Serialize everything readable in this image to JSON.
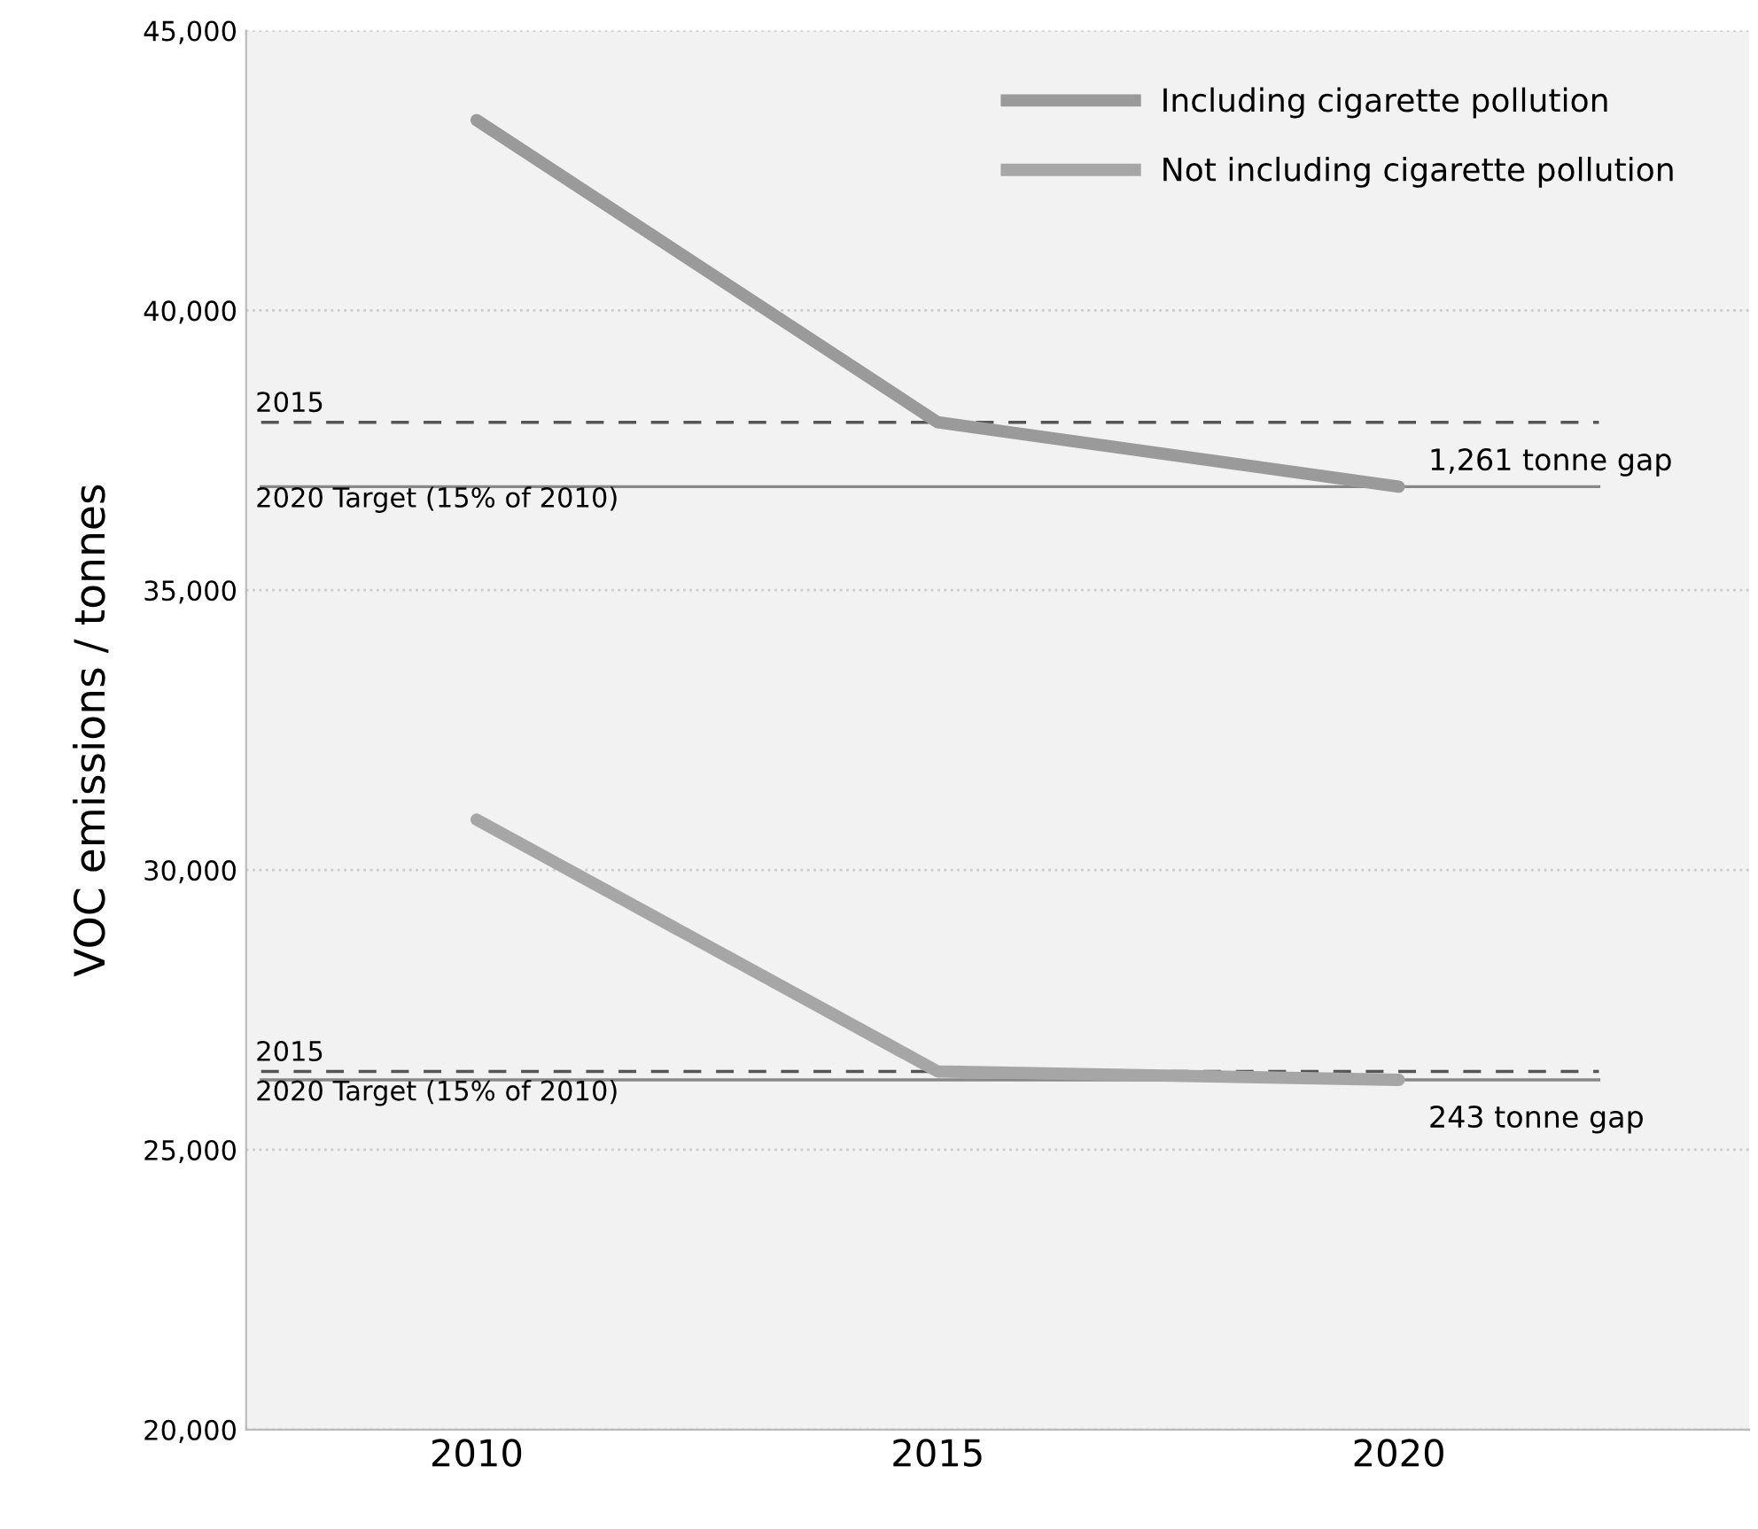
{
  "chart_data": {
    "type": "line",
    "ylabel": "VOC emissions / tonnes",
    "x": [
      2010,
      2015,
      2020
    ],
    "series": [
      {
        "name": "Including cigarette pollution",
        "color": "#9a9a9a",
        "values": [
          43400,
          38000,
          36850
        ]
      },
      {
        "name": "Not including cigarette pollution",
        "color": "#a6a6a6",
        "values": [
          30900,
          26400,
          26250
        ]
      }
    ],
    "xlim": [
      2007.5,
      2023.8
    ],
    "xticks": [
      2010,
      2015,
      2020
    ],
    "ylim": [
      20000,
      45000
    ],
    "yticks": [
      {
        "value": 20000,
        "label": "20,000"
      },
      {
        "value": 25000,
        "label": "25,000"
      },
      {
        "value": 30000,
        "label": "30,000"
      },
      {
        "value": 35000,
        "label": "35,000"
      },
      {
        "value": 40000,
        "label": "40,000"
      },
      {
        "value": 45000,
        "label": "45,000"
      }
    ],
    "ref_lines": [
      {
        "axis": "y",
        "value": 38000,
        "line_style": "dashed",
        "color": "#555555"
      },
      {
        "axis": "y",
        "value": 36850,
        "label": "2020 Target (15% of 2010)",
        "line_style": "solid",
        "color": "#888888"
      },
      {
        "axis": "y",
        "value": 26400,
        "line_style": "dashed",
        "color": "#555555"
      },
      {
        "axis": "y",
        "value": 26250,
        "label": "2020 Target (15% of 2010)",
        "line_style": "solid",
        "color": "#888888"
      }
    ],
    "annotations": [
      {
        "text": "2015",
        "x": 2007.6,
        "y": 38000
      },
      {
        "text": "2015",
        "x": 2007.6,
        "y": 26400
      },
      "1,261 tonne gap",
      "243 tonne gap"
    ],
    "grid": "y",
    "legend": "top right",
    "marker": "none",
    "line_style": "solid"
  }
}
